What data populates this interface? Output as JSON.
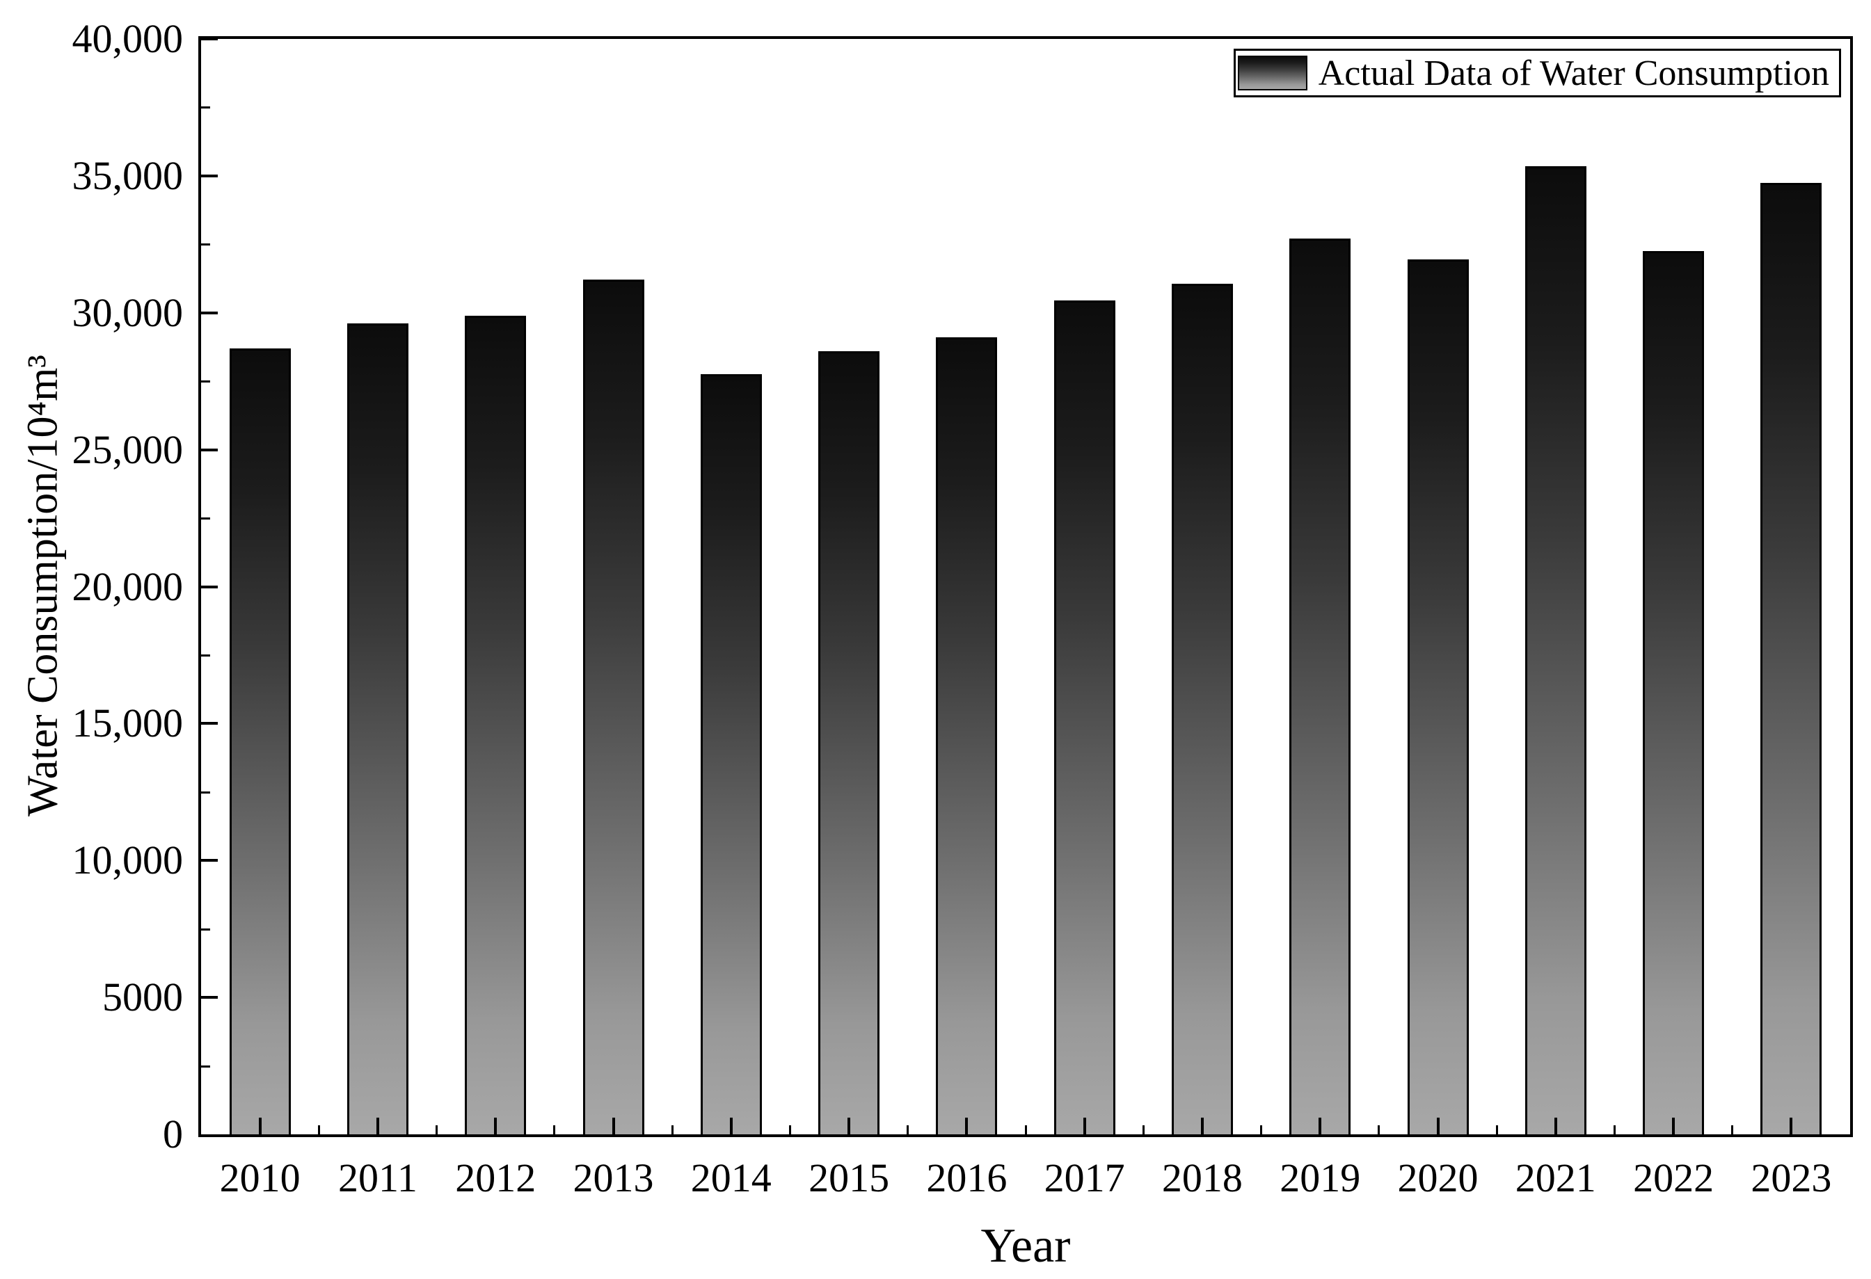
{
  "chart_data": {
    "type": "bar",
    "title": "",
    "xlabel": "Year",
    "ylabel": "Water Consumption/10⁴m³",
    "legend": "Actual Data of Water Consumption",
    "legend_position": "top-right",
    "grid": false,
    "categories": [
      "2010",
      "2011",
      "2012",
      "2013",
      "2014",
      "2015",
      "2016",
      "2017",
      "2018",
      "2019",
      "2020",
      "2021",
      "2022",
      "2023"
    ],
    "values": [
      28700,
      29600,
      29900,
      31200,
      27750,
      28600,
      29100,
      30450,
      31050,
      32700,
      31950,
      35350,
      32250,
      34750
    ],
    "ylim": [
      0,
      40000
    ],
    "y_major_step": 5000,
    "y_minor_step": 2500,
    "y_tick_labels": [
      "0",
      "5000",
      "10,000",
      "15,000",
      "20,000",
      "25,000",
      "30,000",
      "35,000",
      "40,000"
    ],
    "colors": {
      "bar_gradient_top": "#0c0c0c",
      "bar_gradient_bottom": "#a8a8a8",
      "bar_border": "#000000",
      "axis": "#000000",
      "background": "#ffffff"
    }
  }
}
